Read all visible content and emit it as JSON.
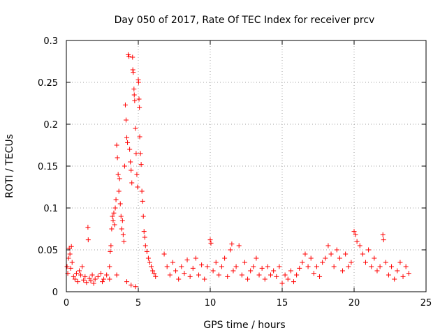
{
  "chart_data": {
    "type": "scatter",
    "title": "Day 050 of 2017, Rate Of TEC Index for receiver prcv",
    "xlabel": "GPS time / hours",
    "ylabel": "ROTI / TECUs",
    "xlim": [
      0,
      25
    ],
    "ylim": [
      0,
      0.3
    ],
    "grid": true,
    "marker": "+",
    "x_ticks": [
      {
        "value": 0,
        "label": "0"
      },
      {
        "value": 5,
        "label": "5"
      },
      {
        "value": 10,
        "label": "10"
      },
      {
        "value": 15,
        "label": "15"
      },
      {
        "value": 20,
        "label": "20"
      },
      {
        "value": 25,
        "label": "25"
      }
    ],
    "y_ticks": [
      {
        "value": 0,
        "label": "0"
      },
      {
        "value": 0.05,
        "label": "0.05"
      },
      {
        "value": 0.1,
        "label": "0.1"
      },
      {
        "value": 0.15,
        "label": "0.15"
      },
      {
        "value": 0.2,
        "label": "0.2"
      },
      {
        "value": 0.25,
        "label": "0.25"
      },
      {
        "value": 0.3,
        "label": "0.3"
      }
    ],
    "series": [
      {
        "name": "ROTI",
        "color": "#ff0000",
        "points": [
          [
            0.05,
            0.03
          ],
          [
            0.1,
            0.022
          ],
          [
            0.15,
            0.04
          ],
          [
            0.2,
            0.052
          ],
          [
            0.25,
            0.045
          ],
          [
            0.3,
            0.028
          ],
          [
            0.35,
            0.054
          ],
          [
            0.4,
            0.035
          ],
          [
            0.5,
            0.018
          ],
          [
            0.6,
            0.015
          ],
          [
            0.7,
            0.022
          ],
          [
            0.8,
            0.012
          ],
          [
            0.9,
            0.025
          ],
          [
            1.0,
            0.02
          ],
          [
            1.1,
            0.03
          ],
          [
            1.2,
            0.014
          ],
          [
            1.3,
            0.018
          ],
          [
            1.4,
            0.011
          ],
          [
            1.5,
            0.077
          ],
          [
            1.52,
            0.062
          ],
          [
            1.6,
            0.016
          ],
          [
            1.7,
            0.013
          ],
          [
            1.8,
            0.02
          ],
          [
            1.9,
            0.01
          ],
          [
            2.0,
            0.015
          ],
          [
            2.2,
            0.018
          ],
          [
            2.4,
            0.022
          ],
          [
            2.6,
            0.015
          ],
          [
            2.8,
            0.02
          ],
          [
            3.0,
            0.03
          ],
          [
            3.05,
            0.048
          ],
          [
            3.1,
            0.055
          ],
          [
            3.15,
            0.075
          ],
          [
            3.2,
            0.09
          ],
          [
            3.25,
            0.085
          ],
          [
            3.3,
            0.094
          ],
          [
            3.35,
            0.08
          ],
          [
            3.4,
            0.1
          ],
          [
            3.45,
            0.11
          ],
          [
            3.5,
            0.175
          ],
          [
            3.55,
            0.16
          ],
          [
            3.6,
            0.14
          ],
          [
            3.65,
            0.12
          ],
          [
            3.7,
            0.135
          ],
          [
            3.75,
            0.105
          ],
          [
            3.8,
            0.09
          ],
          [
            3.85,
            0.075
          ],
          [
            3.9,
            0.085
          ],
          [
            3.95,
            0.068
          ],
          [
            4.0,
            0.06
          ],
          [
            4.05,
            0.15
          ],
          [
            4.1,
            0.223
          ],
          [
            4.15,
            0.205
          ],
          [
            4.2,
            0.184
          ],
          [
            4.25,
            0.178
          ],
          [
            4.3,
            0.283
          ],
          [
            4.35,
            0.281
          ],
          [
            4.4,
            0.17
          ],
          [
            4.45,
            0.155
          ],
          [
            4.5,
            0.145
          ],
          [
            4.55,
            0.13
          ],
          [
            4.6,
            0.28
          ],
          [
            4.62,
            0.265
          ],
          [
            4.65,
            0.262
          ],
          [
            4.7,
            0.242
          ],
          [
            4.72,
            0.235
          ],
          [
            4.75,
            0.228
          ],
          [
            4.8,
            0.195
          ],
          [
            4.85,
            0.165
          ],
          [
            4.9,
            0.14
          ],
          [
            4.95,
            0.125
          ],
          [
            5.0,
            0.253
          ],
          [
            5.02,
            0.25
          ],
          [
            5.05,
            0.23
          ],
          [
            5.08,
            0.22
          ],
          [
            5.1,
            0.185
          ],
          [
            5.15,
            0.165
          ],
          [
            5.2,
            0.152
          ],
          [
            5.25,
            0.12
          ],
          [
            5.3,
            0.108
          ],
          [
            5.35,
            0.09
          ],
          [
            5.4,
            0.072
          ],
          [
            5.45,
            0.065
          ],
          [
            5.5,
            0.055
          ],
          [
            5.6,
            0.048
          ],
          [
            5.7,
            0.04
          ],
          [
            5.8,
            0.035
          ],
          [
            5.9,
            0.03
          ],
          [
            6.0,
            0.025
          ],
          [
            6.1,
            0.022
          ],
          [
            6.2,
            0.018
          ],
          [
            4.2,
            0.012
          ],
          [
            4.5,
            0.008
          ],
          [
            4.8,
            0.006
          ],
          [
            3.5,
            0.02
          ],
          [
            3.0,
            0.015
          ],
          [
            2.5,
            0.012
          ],
          [
            6.8,
            0.045
          ],
          [
            7.0,
            0.03
          ],
          [
            7.2,
            0.02
          ],
          [
            7.4,
            0.035
          ],
          [
            7.6,
            0.025
          ],
          [
            7.8,
            0.015
          ],
          [
            8.0,
            0.03
          ],
          [
            8.2,
            0.022
          ],
          [
            8.4,
            0.038
          ],
          [
            8.6,
            0.018
          ],
          [
            8.8,
            0.028
          ],
          [
            9.0,
            0.04
          ],
          [
            9.2,
            0.02
          ],
          [
            9.4,
            0.032
          ],
          [
            9.6,
            0.015
          ],
          [
            9.8,
            0.03
          ],
          [
            10.0,
            0.062
          ],
          [
            10.05,
            0.058
          ],
          [
            10.2,
            0.025
          ],
          [
            10.4,
            0.035
          ],
          [
            10.6,
            0.02
          ],
          [
            10.8,
            0.03
          ],
          [
            11.0,
            0.04
          ],
          [
            11.2,
            0.018
          ],
          [
            11.4,
            0.05
          ],
          [
            11.5,
            0.057
          ],
          [
            11.6,
            0.025
          ],
          [
            11.8,
            0.03
          ],
          [
            12.0,
            0.055
          ],
          [
            12.2,
            0.02
          ],
          [
            12.4,
            0.035
          ],
          [
            12.6,
            0.015
          ],
          [
            12.8,
            0.025
          ],
          [
            13.0,
            0.03
          ],
          [
            13.2,
            0.04
          ],
          [
            13.4,
            0.02
          ],
          [
            13.6,
            0.028
          ],
          [
            13.8,
            0.015
          ],
          [
            14.0,
            0.03
          ],
          [
            14.2,
            0.02
          ],
          [
            14.4,
            0.025
          ],
          [
            14.6,
            0.018
          ],
          [
            14.8,
            0.03
          ],
          [
            15.0,
            0.01
          ],
          [
            15.2,
            0.02
          ],
          [
            15.4,
            0.015
          ],
          [
            15.6,
            0.025
          ],
          [
            15.8,
            0.012
          ],
          [
            16.0,
            0.02
          ],
          [
            16.2,
            0.028
          ],
          [
            16.4,
            0.035
          ],
          [
            16.6,
            0.045
          ],
          [
            16.8,
            0.03
          ],
          [
            17.0,
            0.04
          ],
          [
            17.2,
            0.022
          ],
          [
            17.4,
            0.03
          ],
          [
            17.6,
            0.018
          ],
          [
            17.8,
            0.035
          ],
          [
            18.0,
            0.04
          ],
          [
            18.2,
            0.055
          ],
          [
            18.4,
            0.045
          ],
          [
            18.6,
            0.03
          ],
          [
            18.8,
            0.05
          ],
          [
            19.0,
            0.04
          ],
          [
            19.2,
            0.025
          ],
          [
            19.4,
            0.045
          ],
          [
            19.6,
            0.03
          ],
          [
            19.8,
            0.035
          ],
          [
            20.0,
            0.072
          ],
          [
            20.1,
            0.068
          ],
          [
            20.2,
            0.06
          ],
          [
            20.4,
            0.055
          ],
          [
            20.6,
            0.045
          ],
          [
            20.8,
            0.035
          ],
          [
            21.0,
            0.05
          ],
          [
            21.2,
            0.03
          ],
          [
            21.4,
            0.04
          ],
          [
            21.6,
            0.025
          ],
          [
            21.8,
            0.03
          ],
          [
            22.0,
            0.068
          ],
          [
            22.05,
            0.062
          ],
          [
            22.2,
            0.035
          ],
          [
            22.4,
            0.02
          ],
          [
            22.6,
            0.03
          ],
          [
            22.8,
            0.015
          ],
          [
            23.0,
            0.025
          ],
          [
            23.2,
            0.035
          ],
          [
            23.4,
            0.018
          ],
          [
            23.6,
            0.03
          ],
          [
            23.8,
            0.022
          ]
        ]
      }
    ]
  }
}
